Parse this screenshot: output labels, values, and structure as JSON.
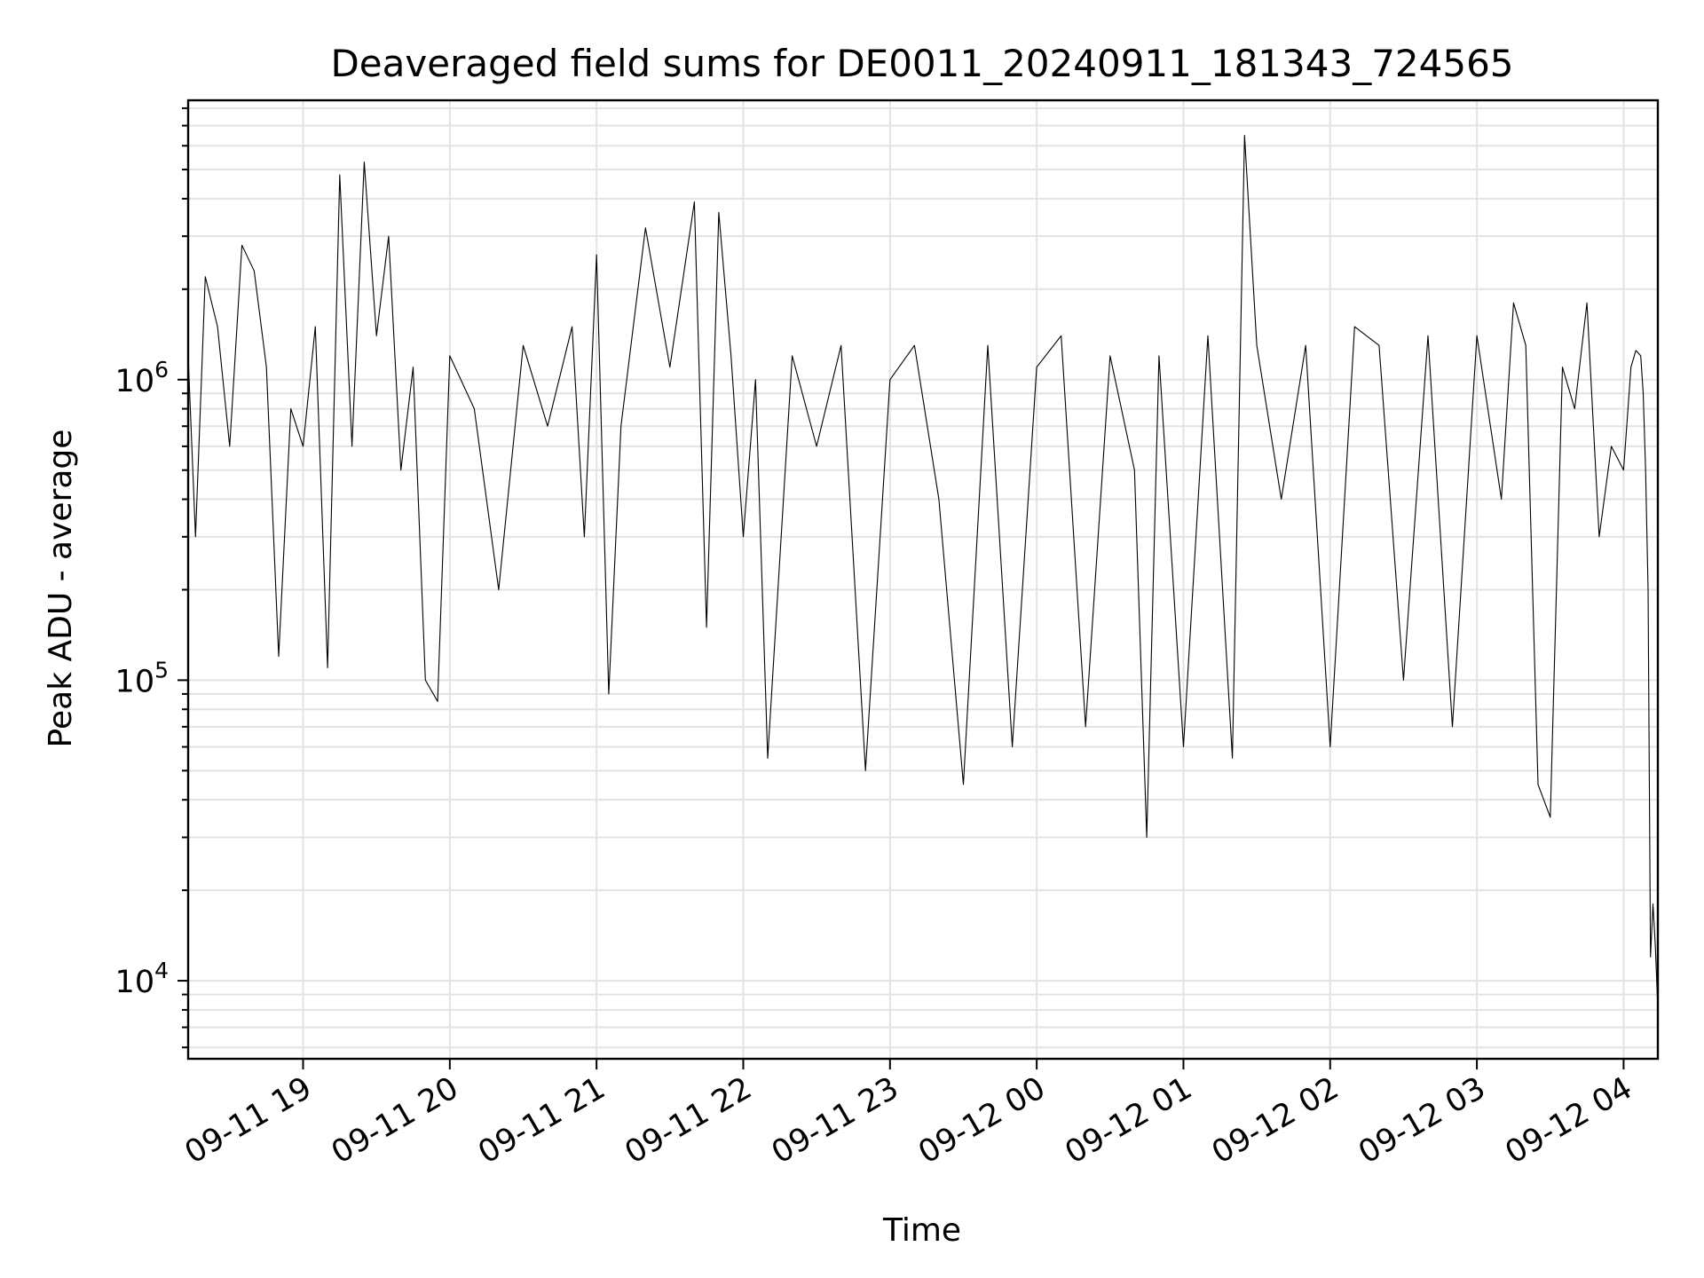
{
  "chart_data": {
    "type": "line",
    "title": "Deaveraged field sums for DE0011_20240911_181343_724565",
    "xlabel": "Time",
    "ylabel": "Peak ADU - average",
    "yscale": "log",
    "grid": true,
    "line_color": "#000000",
    "grid_color": "#e3e3e3",
    "xlim": [
      "2024-09-11 18:13",
      "2024-09-12 04:14"
    ],
    "ylim": [
      5500,
      8500000
    ],
    "x_ticks": [
      {
        "t": "2024-09-11 19:00",
        "label": "09-11 19"
      },
      {
        "t": "2024-09-11 20:00",
        "label": "09-11 20"
      },
      {
        "t": "2024-09-11 21:00",
        "label": "09-11 21"
      },
      {
        "t": "2024-09-11 22:00",
        "label": "09-11 22"
      },
      {
        "t": "2024-09-11 23:00",
        "label": "09-11 23"
      },
      {
        "t": "2024-09-12 00:00",
        "label": "09-12 00"
      },
      {
        "t": "2024-09-12 01:00",
        "label": "09-12 01"
      },
      {
        "t": "2024-09-12 02:00",
        "label": "09-12 02"
      },
      {
        "t": "2024-09-12 03:00",
        "label": "09-12 03"
      },
      {
        "t": "2024-09-12 04:00",
        "label": "09-12 04"
      }
    ],
    "y_ticks": [
      {
        "value": 10000,
        "base": "10",
        "exp": "4"
      },
      {
        "value": 100000,
        "base": "10",
        "exp": "5"
      },
      {
        "value": 1000000,
        "base": "10",
        "exp": "6"
      }
    ],
    "series": [
      {
        "x": [
          "2024-09-11 18:13",
          "2024-09-11 18:16",
          "2024-09-11 18:20",
          "2024-09-11 18:25",
          "2024-09-11 18:30",
          "2024-09-11 18:35",
          "2024-09-11 18:40",
          "2024-09-11 18:45",
          "2024-09-11 18:50",
          "2024-09-11 18:55",
          "2024-09-11 19:00",
          "2024-09-11 19:05",
          "2024-09-11 19:10",
          "2024-09-11 19:15",
          "2024-09-11 19:20",
          "2024-09-11 19:25",
          "2024-09-11 19:30",
          "2024-09-11 19:35",
          "2024-09-11 19:40",
          "2024-09-11 19:45",
          "2024-09-11 19:50",
          "2024-09-11 19:55",
          "2024-09-11 20:00",
          "2024-09-11 20:10",
          "2024-09-11 20:20",
          "2024-09-11 20:30",
          "2024-09-11 20:40",
          "2024-09-11 20:50",
          "2024-09-11 20:55",
          "2024-09-11 21:00",
          "2024-09-11 21:05",
          "2024-09-11 21:10",
          "2024-09-11 21:20",
          "2024-09-11 21:30",
          "2024-09-11 21:40",
          "2024-09-11 21:45",
          "2024-09-11 21:50",
          "2024-09-11 21:55",
          "2024-09-11 22:00",
          "2024-09-11 22:05",
          "2024-09-11 22:10",
          "2024-09-11 22:20",
          "2024-09-11 22:30",
          "2024-09-11 22:40",
          "2024-09-11 22:50",
          "2024-09-11 23:00",
          "2024-09-11 23:10",
          "2024-09-11 23:20",
          "2024-09-11 23:30",
          "2024-09-11 23:40",
          "2024-09-11 23:50",
          "2024-09-12 00:00",
          "2024-09-12 00:10",
          "2024-09-12 00:20",
          "2024-09-12 00:30",
          "2024-09-12 00:40",
          "2024-09-12 00:45",
          "2024-09-12 00:50",
          "2024-09-12 01:00",
          "2024-09-12 01:10",
          "2024-09-12 01:20",
          "2024-09-12 01:25",
          "2024-09-12 01:30",
          "2024-09-12 01:40",
          "2024-09-12 01:50",
          "2024-09-12 02:00",
          "2024-09-12 02:10",
          "2024-09-12 02:20",
          "2024-09-12 02:30",
          "2024-09-12 02:40",
          "2024-09-12 02:50",
          "2024-09-12 03:00",
          "2024-09-12 03:10",
          "2024-09-12 03:15",
          "2024-09-12 03:20",
          "2024-09-12 03:25",
          "2024-09-12 03:30",
          "2024-09-12 03:35",
          "2024-09-12 03:40",
          "2024-09-12 03:45",
          "2024-09-12 03:50",
          "2024-09-12 03:55",
          "2024-09-12 04:00",
          "2024-09-12 04:03",
          "2024-09-12 04:05",
          "2024-09-12 04:07",
          "2024-09-12 04:08",
          "2024-09-12 04:09",
          "2024-09-12 04:10",
          "2024-09-12 04:11",
          "2024-09-12 04:12",
          "2024-09-12 04:13",
          "2024-09-12 04:14"
        ],
        "y": [
          1200000,
          300000,
          2200000,
          1500000,
          600000,
          2800000,
          2300000,
          1100000,
          120000,
          800000,
          600000,
          1500000,
          110000,
          4800000,
          600000,
          5300000,
          1400000,
          3000000,
          500000,
          1100000,
          100000,
          85000,
          1200000,
          800000,
          200000,
          1300000,
          700000,
          1500000,
          300000,
          2600000,
          90000,
          700000,
          3200000,
          1100000,
          3900000,
          150000,
          3600000,
          1200000,
          300000,
          1000000,
          55000,
          1200000,
          600000,
          1300000,
          50000,
          1000000,
          1300000,
          400000,
          45000,
          1300000,
          60000,
          1100000,
          1400000,
          70000,
          1200000,
          500000,
          30000,
          1200000,
          60000,
          1400000,
          55000,
          6500000,
          1300000,
          400000,
          1300000,
          60000,
          1500000,
          1300000,
          100000,
          1400000,
          70000,
          1400000,
          400000,
          1800000,
          1300000,
          45000,
          35000,
          1100000,
          800000,
          1800000,
          300000,
          600000,
          500000,
          1100000,
          1250000,
          1200000,
          900000,
          500000,
          200000,
          12000,
          18000,
          13000,
          8000
        ]
      }
    ]
  }
}
